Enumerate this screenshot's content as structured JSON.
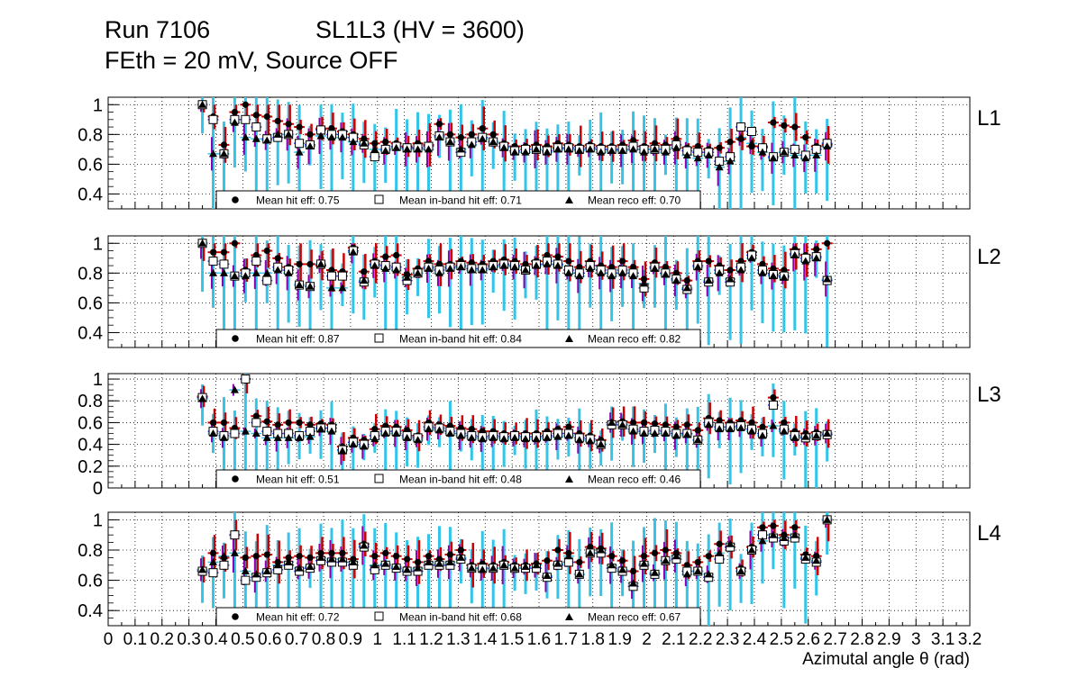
{
  "header": {
    "run": "Run 7106",
    "chamber": "SL1L3 (HV = 3600)",
    "conditions": "FEth = 20 mV, Source OFF"
  },
  "colors": {
    "hit": "#cc0000",
    "inband": "#3a3aff",
    "reco": "#8a00aa",
    "error": "#33c4e8",
    "marker": "#000000"
  },
  "chart_data": {
    "type": "scatter",
    "title": "Run 7106   SL1L3 (HV = 3600) — FEth = 20 mV, Source OFF",
    "xlabel": "Azimutal angle θ (rad)",
    "ylabel": "",
    "xlim": [
      0,
      3.2
    ],
    "x_ticks": [
      "0",
      "0.1",
      "0.2",
      "0.3",
      "0.4",
      "0.5",
      "0.6",
      "0.7",
      "0.8",
      "0.9",
      "1",
      "1.1",
      "1.2",
      "1.3",
      "1.4",
      "1.5",
      "1.6",
      "1.7",
      "1.8",
      "1.9",
      "2",
      "2.1",
      "2.2",
      "2.3",
      "2.4",
      "2.5",
      "2.6",
      "2.7",
      "2.8",
      "2.9",
      "3",
      "3.1",
      "3.2"
    ],
    "x": [
      0.35,
      0.39,
      0.43,
      0.47,
      0.51,
      0.55,
      0.59,
      0.63,
      0.67,
      0.71,
      0.75,
      0.79,
      0.83,
      0.87,
      0.91,
      0.95,
      0.99,
      1.03,
      1.07,
      1.11,
      1.15,
      1.19,
      1.23,
      1.27,
      1.31,
      1.35,
      1.39,
      1.43,
      1.47,
      1.51,
      1.55,
      1.59,
      1.63,
      1.67,
      1.71,
      1.75,
      1.79,
      1.83,
      1.87,
      1.91,
      1.95,
      1.99,
      2.03,
      2.07,
      2.11,
      2.15,
      2.19,
      2.23,
      2.27,
      2.31,
      2.35,
      2.39,
      2.43,
      2.47,
      2.51,
      2.55,
      2.59,
      2.63,
      2.67
    ],
    "legend_labels": {
      "hit": "Mean hit  eff: ",
      "inband": "Mean in-band hit eff: ",
      "reco": "Mean reco eff: "
    },
    "panels": [
      {
        "label": "L1",
        "ylim": [
          0.3,
          1.05
        ],
        "y_ticks": [
          "0.4",
          "0.6",
          "0.8",
          "1"
        ],
        "mean_hit": "0.75",
        "mean_inband": "0.71",
        "mean_reco": "0.70",
        "series": [
          {
            "name": "hit",
            "values": [
              1,
              0.92,
              0.73,
              0.95,
              1,
              0.93,
              0.92,
              0.89,
              0.87,
              0.85,
              0.8,
              0.84,
              0.84,
              0.82,
              0.8,
              0.77,
              0.74,
              0.75,
              0.74,
              0.72,
              0.74,
              0.73,
              0.87,
              0.8,
              0.78,
              0.8,
              0.84,
              0.8,
              0.74,
              0.72,
              0.72,
              0.73,
              0.72,
              0.74,
              0.73,
              0.72,
              0.73,
              0.72,
              0.72,
              0.73,
              0.76,
              0.72,
              0.74,
              0.73,
              0.77,
              0.71,
              0.72,
              0.7,
              0.71,
              0.75,
              0.77,
              0.72,
              0.72,
              0.88,
              0.86,
              0.85,
              0.78,
              0.72,
              0.73
            ]
          },
          {
            "name": "inband",
            "values": [
              1,
              0.9,
              0.67,
              0.9,
              0.9,
              0.85,
              0.77,
              0.78,
              0.8,
              0.74,
              0.73,
              0.83,
              0.8,
              0.8,
              0.78,
              0.73,
              0.65,
              0.7,
              0.72,
              0.71,
              0.71,
              0.72,
              0.79,
              0.75,
              0.68,
              0.75,
              0.78,
              0.75,
              0.72,
              0.69,
              0.7,
              0.7,
              0.69,
              0.71,
              0.71,
              0.7,
              0.71,
              0.7,
              0.7,
              0.7,
              0.72,
              0.7,
              0.7,
              0.7,
              0.73,
              0.69,
              0.68,
              0.68,
              0.62,
              0.65,
              0.85,
              0.82,
              0.71,
              0.65,
              0.68,
              0.7,
              0.66,
              0.7,
              0.74
            ]
          },
          {
            "name": "reco",
            "values": [
              1,
              0.67,
              0.67,
              0.88,
              0.78,
              0.77,
              0.76,
              0.8,
              0.8,
              0.68,
              0.72,
              0.79,
              0.78,
              0.78,
              0.75,
              0.74,
              0.7,
              0.69,
              0.71,
              0.7,
              0.7,
              0.7,
              0.78,
              0.75,
              0.7,
              0.73,
              0.77,
              0.75,
              0.71,
              0.68,
              0.68,
              0.7,
              0.68,
              0.7,
              0.7,
              0.69,
              0.7,
              0.68,
              0.69,
              0.69,
              0.7,
              0.68,
              0.7,
              0.68,
              0.71,
              0.66,
              0.64,
              0.66,
              0.58,
              0.62,
              0.78,
              0.74,
              0.68,
              0.64,
              0.68,
              0.66,
              0.64,
              0.66,
              0.72
            ]
          }
        ]
      },
      {
        "label": "L2",
        "ylim": [
          0.3,
          1.05
        ],
        "y_ticks": [
          "0.4",
          "0.6",
          "0.8",
          "1"
        ],
        "mean_hit": "0.87",
        "mean_inband": "0.84",
        "mean_reco": "0.82",
        "series": [
          {
            "name": "hit",
            "values": [
              1,
              0.94,
              0.94,
              1,
              0.82,
              0.92,
              0.95,
              0.9,
              0.84,
              0.86,
              0.86,
              0.85,
              0.82,
              0.81,
              0.97,
              0.81,
              0.88,
              0.91,
              0.92,
              0.79,
              0.83,
              0.88,
              0.86,
              0.86,
              0.88,
              0.87,
              0.86,
              0.88,
              0.89,
              0.88,
              0.86,
              0.88,
              0.92,
              0.91,
              0.88,
              0.84,
              0.88,
              0.85,
              0.84,
              0.88,
              0.84,
              0.76,
              0.87,
              0.84,
              0.8,
              0.75,
              0.88,
              0.88,
              0.85,
              0.82,
              0.88,
              0.94,
              0.86,
              0.83,
              0.82,
              0.96,
              0.92,
              0.96,
              1
            ]
          },
          {
            "name": "inband",
            "values": [
              1,
              0.88,
              0.86,
              0.78,
              0.8,
              0.88,
              0.75,
              0.84,
              0.82,
              0.72,
              0.71,
              0.86,
              0.78,
              0.78,
              0.95,
              0.74,
              0.86,
              0.85,
              0.84,
              0.75,
              0.8,
              0.84,
              0.82,
              0.84,
              0.85,
              0.83,
              0.83,
              0.85,
              0.86,
              0.85,
              0.82,
              0.86,
              0.88,
              0.86,
              0.82,
              0.8,
              0.85,
              0.82,
              0.8,
              0.82,
              0.8,
              0.7,
              0.84,
              0.8,
              0.76,
              0.69,
              0.85,
              0.74,
              0.82,
              0.74,
              0.84,
              0.92,
              0.82,
              0.79,
              0.78,
              0.93,
              0.9,
              0.91,
              0.75
            ]
          },
          {
            "name": "reco",
            "values": [
              1,
              0.8,
              0.8,
              0.78,
              0.78,
              0.8,
              0.8,
              0.82,
              0.8,
              0.72,
              0.71,
              0.86,
              0.7,
              0.7,
              0.94,
              0.75,
              0.85,
              0.83,
              0.82,
              0.77,
              0.8,
              0.83,
              0.8,
              0.83,
              0.84,
              0.82,
              0.82,
              0.84,
              0.85,
              0.84,
              0.82,
              0.85,
              0.86,
              0.85,
              0.8,
              0.78,
              0.83,
              0.8,
              0.78,
              0.8,
              0.78,
              0.73,
              0.83,
              0.79,
              0.75,
              0.7,
              0.84,
              0.75,
              0.8,
              0.76,
              0.82,
              0.9,
              0.8,
              0.78,
              0.77,
              0.92,
              0.88,
              0.9,
              0.76
            ]
          }
        ]
      },
      {
        "label": "L3",
        "ylim": [
          0,
          1.05
        ],
        "y_ticks": [
          "0",
          "0.2",
          "0.4",
          "0.6",
          "0.8",
          "1"
        ],
        "mean_hit": "0.51",
        "mean_inband": "0.48",
        "mean_reco": "0.46",
        "series": [
          {
            "name": "hit",
            "values": [
              0.84,
              0.6,
              0.6,
              0.55,
              1,
              0.66,
              0.61,
              0.58,
              0.6,
              0.6,
              0.58,
              0.59,
              0.58,
              0.38,
              0.46,
              0.44,
              0.54,
              0.57,
              0.56,
              0.53,
              0.48,
              0.6,
              0.58,
              0.57,
              0.55,
              0.54,
              0.52,
              0.52,
              0.5,
              0.5,
              0.5,
              0.5,
              0.52,
              0.54,
              0.56,
              0.5,
              0.48,
              0.44,
              0.6,
              0.61,
              0.6,
              0.6,
              0.59,
              0.58,
              0.56,
              0.58,
              0.53,
              0.64,
              0.62,
              0.6,
              0.62,
              0.6,
              0.56,
              0.83,
              0.6,
              0.52,
              0.5,
              0.51,
              0.5
            ]
          },
          {
            "name": "inband",
            "values": [
              0.83,
              0.52,
              0.48,
              0.5,
              1,
              0.6,
              0.52,
              0.5,
              0.5,
              0.48,
              0.52,
              0.55,
              0.55,
              0.35,
              0.42,
              0.4,
              0.48,
              0.52,
              0.52,
              0.48,
              0.46,
              0.56,
              0.55,
              0.52,
              0.5,
              0.48,
              0.47,
              0.48,
              0.47,
              0.48,
              0.47,
              0.47,
              0.48,
              0.5,
              0.5,
              0.46,
              0.45,
              0.4,
              0.58,
              0.58,
              0.54,
              0.52,
              0.53,
              0.52,
              0.5,
              0.5,
              0.44,
              0.6,
              0.56,
              0.56,
              0.57,
              0.54,
              0.5,
              0.76,
              0.54,
              0.48,
              0.46,
              0.48,
              0.49
            ]
          },
          {
            "name": "reco",
            "values": [
              0.82,
              0.5,
              0.46,
              0.9,
              0.52,
              0.5,
              0.46,
              0.46,
              0.46,
              0.46,
              0.47,
              0.54,
              0.52,
              0.34,
              0.4,
              0.38,
              0.45,
              0.5,
              0.5,
              0.46,
              0.44,
              0.54,
              0.53,
              0.5,
              0.48,
              0.46,
              0.45,
              0.46,
              0.45,
              0.46,
              0.45,
              0.45,
              0.46,
              0.47,
              0.48,
              0.44,
              0.43,
              0.4,
              0.6,
              0.58,
              0.52,
              0.5,
              0.5,
              0.5,
              0.48,
              0.49,
              0.44,
              0.58,
              0.54,
              0.54,
              0.55,
              0.52,
              0.48,
              0.57,
              0.52,
              0.46,
              0.47,
              0.48,
              0.5
            ]
          }
        ]
      },
      {
        "label": "L4",
        "ylim": [
          0.3,
          1.05
        ],
        "y_ticks": [
          "0.4",
          "0.6",
          "0.8",
          "1"
        ],
        "mean_hit": "0.72",
        "mean_inband": "0.68",
        "mean_reco": "0.67",
        "series": [
          {
            "name": "hit",
            "values": [
              0.67,
              0.78,
              0.75,
              0.9,
              0.75,
              0.76,
              0.77,
              0.72,
              0.75,
              0.76,
              0.75,
              0.78,
              0.78,
              0.78,
              0.74,
              0.84,
              0.76,
              0.78,
              0.76,
              0.74,
              0.72,
              0.76,
              0.74,
              0.77,
              0.8,
              0.7,
              0.71,
              0.7,
              0.72,
              0.7,
              0.7,
              0.71,
              0.73,
              0.8,
              0.78,
              0.72,
              0.82,
              0.81,
              0.76,
              0.73,
              0.66,
              0.76,
              0.78,
              0.8,
              0.78,
              0.7,
              0.72,
              0.76,
              0.84,
              0.82,
              0.68,
              0.82,
              0.95,
              0.96,
              0.9,
              0.95,
              0.77,
              0.76,
              1
            ]
          },
          {
            "name": "inband",
            "values": [
              0.66,
              0.65,
              0.7,
              0.9,
              0.6,
              0.62,
              0.65,
              0.67,
              0.7,
              0.66,
              0.68,
              0.73,
              0.72,
              0.72,
              0.7,
              0.82,
              0.67,
              0.7,
              0.68,
              0.66,
              0.66,
              0.7,
              0.7,
              0.7,
              0.74,
              0.68,
              0.68,
              0.68,
              0.7,
              0.68,
              0.68,
              0.68,
              0.62,
              0.7,
              0.72,
              0.64,
              0.78,
              0.78,
              0.68,
              0.66,
              0.56,
              0.7,
              0.64,
              0.73,
              0.74,
              0.66,
              0.66,
              0.62,
              0.74,
              0.82,
              0.66,
              0.8,
              0.9,
              0.88,
              0.86,
              0.88,
              0.74,
              0.72,
              1
            ]
          },
          {
            "name": "reco",
            "values": [
              0.67,
              0.72,
              0.76,
              0.78,
              0.66,
              0.64,
              0.66,
              0.7,
              0.72,
              0.68,
              0.69,
              0.75,
              0.74,
              0.74,
              0.72,
              0.83,
              0.7,
              0.71,
              0.69,
              0.67,
              0.68,
              0.72,
              0.71,
              0.72,
              0.75,
              0.68,
              0.67,
              0.68,
              0.7,
              0.68,
              0.69,
              0.7,
              0.63,
              0.71,
              0.76,
              0.64,
              0.78,
              0.8,
              0.7,
              0.67,
              0.58,
              0.71,
              0.65,
              0.73,
              0.76,
              0.64,
              0.66,
              0.64,
              0.78,
              0.84,
              0.66,
              0.8,
              0.86,
              0.9,
              0.88,
              0.9,
              0.75,
              0.73,
              1
            ]
          }
        ]
      }
    ]
  }
}
